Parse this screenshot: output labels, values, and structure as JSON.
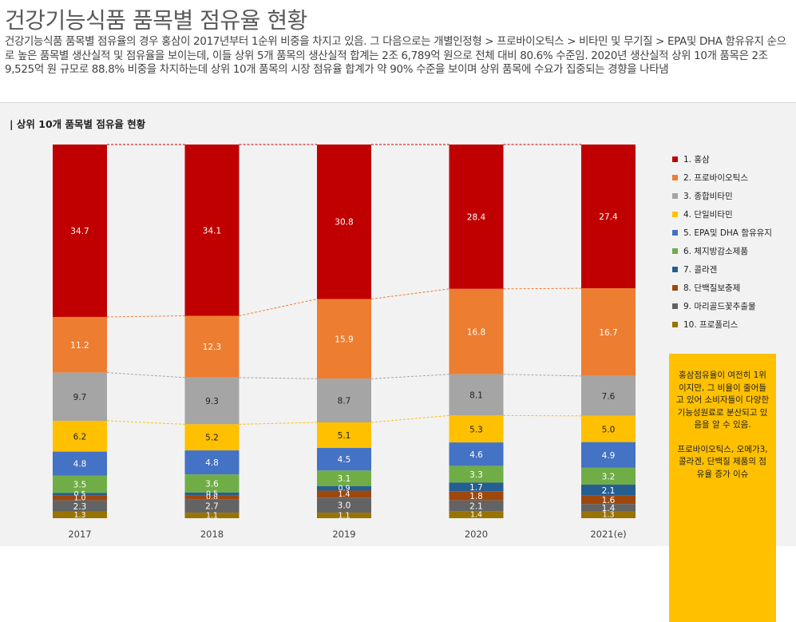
{
  "page": {
    "title": "건강기능식품 품목별 점유율 현황",
    "intro": "건강기능식품 품목별 점유율의 경우 홍삼이 2017년부터 1순위 비중을 차지고 있음. 그 다음으로는 개별인정형 > 프로바이오틱스 > 비타민 및 무기질 > EPA및 DHA 함유유지 순으로 높은 품목별 생산실적 및 점유율을 보이는데, 이들 상위 5개 품목의 생산실적 합계는 2조 6,789억 원으로 전체 대비 80.6% 수준임. 2020년 생산실적 상위 10개 품목은 2조 9,525억 원 규모로 88.8% 비중을 차지하는데 상위 10개 품목의 시장 점유율 합계가 약 90% 수준을 보이며 상위 품목에 수요가 집중되는 경향을 나타냄"
  },
  "panel": {
    "title": "| 상위 10개 품목별 점유율 현황"
  },
  "note": {
    "p1": "홍삼점유율이 여전히 1위이지만, 그 비율이 줄어들고 있어 소비자들이 다양한 기능성원료로 분산되고 있음을 알 수 있음.",
    "p2": "프로바이오틱스, 오메가3, 콜라겐, 단백질 제품의 점유율 증가 이슈"
  },
  "colors": {
    "series": [
      "#c00000",
      "#ed7d31",
      "#a5a5a5",
      "#ffc000",
      "#4472c4",
      "#70ad47",
      "#255e91",
      "#9e480e",
      "#636363",
      "#997300"
    ],
    "connector_top": "#c00000",
    "connector_mid": "#ed7d31",
    "connector_grey": "#a5a5a5",
    "connector_yellow": "#ffc000",
    "note_bg": "#ffc000"
  },
  "chart_data": {
    "type": "bar",
    "stacked": true,
    "title": "상위 10개 품목별 점유율 현황",
    "categories": [
      "2017",
      "2018",
      "2019",
      "2020",
      "2021(e)"
    ],
    "legend_position": "right",
    "series": [
      {
        "name": "1.  홍삼",
        "values": [
          34.7,
          34.1,
          30.8,
          28.4,
          27.4
        ]
      },
      {
        "name": "2.  프로바이오틱스",
        "values": [
          11.2,
          12.3,
          15.9,
          16.8,
          16.7
        ]
      },
      {
        "name": "3.  종합비타민",
        "values": [
          9.7,
          9.3,
          8.7,
          8.1,
          7.6
        ]
      },
      {
        "name": "4.  단일비타민",
        "values": [
          6.2,
          5.2,
          5.1,
          5.3,
          5.0
        ]
      },
      {
        "name": "5.  EPA및 DHA 함유유지",
        "values": [
          4.8,
          4.8,
          4.5,
          4.6,
          4.9
        ]
      },
      {
        "name": "6.  체지방감소제품",
        "values": [
          3.5,
          3.6,
          3.1,
          3.3,
          3.2
        ]
      },
      {
        "name": "7.  콜라겐",
        "values": [
          0.5,
          0.5,
          0.9,
          1.7,
          2.1
        ]
      },
      {
        "name": "8.  단백질보충제",
        "values": [
          1.0,
          0.8,
          1.4,
          1.8,
          1.6
        ]
      },
      {
        "name": "9.  마리골드꽃추출물",
        "values": [
          2.3,
          2.7,
          3.0,
          2.1,
          1.4
        ]
      },
      {
        "name": "10. 프로폴리스",
        "values": [
          1.3,
          1.1,
          1.1,
          1.4,
          1.3
        ]
      }
    ]
  }
}
